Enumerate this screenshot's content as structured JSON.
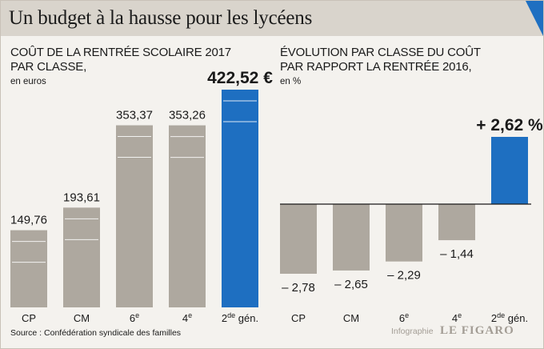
{
  "header": {
    "title": "Un budget à la hausse pour les lycéens",
    "accent_color": "#1e6fc1"
  },
  "colors": {
    "bar": "#aea89f",
    "highlight": "#1e6fc1",
    "axis": "#1a1a1a"
  },
  "chart_data": [
    {
      "type": "bar",
      "title_line1": "COÛT DE LA RENTRÉE SCOLAIRE 2017",
      "title_line2": "PAR CLASSE,",
      "subtitle": "en euros",
      "categories": [
        "CP",
        "CM",
        "6",
        "4",
        "2"
      ],
      "category_sup": [
        "",
        "",
        "e",
        "e",
        "de"
      ],
      "category_suffix": [
        "",
        "",
        "",
        "",
        " gén."
      ],
      "values": [
        149.76,
        193.61,
        353.37,
        353.26,
        422.52
      ],
      "labels": [
        "149,76",
        "193,61",
        "353,37",
        "353,26",
        "422,52 €"
      ],
      "highlight_index": 4,
      "ylim": [
        0,
        422.52
      ]
    },
    {
      "type": "bar",
      "title_line1": "ÉVOLUTION PAR CLASSE DU COÛT",
      "title_line2": "PAR RAPPORT LA RENTRÉE 2016,",
      "subtitle": "en %",
      "categories": [
        "CP",
        "CM",
        "6",
        "4",
        "2"
      ],
      "category_sup": [
        "",
        "",
        "e",
        "e",
        "de"
      ],
      "category_suffix": [
        "",
        "",
        "",
        "",
        " gén."
      ],
      "values": [
        -2.78,
        -2.65,
        -2.29,
        -1.44,
        2.62
      ],
      "labels": [
        "– 2,78",
        "– 2,65",
        "– 2,29",
        "– 1,44",
        "+ 2,62 %"
      ],
      "highlight_index": 4,
      "ylim": [
        -2.78,
        2.62
      ]
    }
  ],
  "footer": {
    "source": "Source : Confédération syndicale des familles",
    "credit_small": "Infographie",
    "credit_logo": "LE FIGARO"
  }
}
